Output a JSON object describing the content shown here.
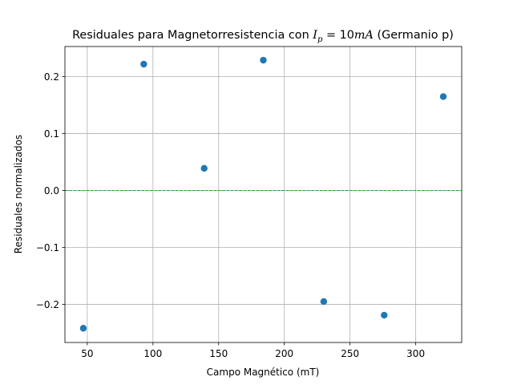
{
  "chart_data": {
    "type": "scatter",
    "title": {
      "prefix": "Residuales para Magnetorresistencia con ",
      "math_var": "I",
      "math_sub": "p",
      "math_eq": " = 10",
      "math_unit": "mA",
      "suffix": " (Germanio p)"
    },
    "xlabel": "Campo Magnético (mT)",
    "ylabel": "Residuales normalizados",
    "xlim": [
      33,
      335
    ],
    "ylim": [
      -0.267,
      0.253
    ],
    "xticks": [
      50,
      100,
      150,
      200,
      250,
      300
    ],
    "xtick_labels": [
      "50",
      "100",
      "150",
      "200",
      "250",
      "300"
    ],
    "yticks": [
      -0.2,
      -0.1,
      0.0,
      0.1,
      0.2
    ],
    "ytick_labels": [
      "−0.2",
      "−0.1",
      "0.0",
      "0.1",
      "0.2"
    ],
    "grid": true,
    "reference_line": {
      "y": 0.0,
      "color": "#2ca02c",
      "style": "dashed"
    },
    "point_color": "#1f77b4",
    "points": [
      {
        "x": 47,
        "y": -0.242
      },
      {
        "x": 93,
        "y": 0.222
      },
      {
        "x": 139,
        "y": 0.039
      },
      {
        "x": 184,
        "y": 0.229
      },
      {
        "x": 230,
        "y": -0.195
      },
      {
        "x": 276,
        "y": -0.219
      },
      {
        "x": 321,
        "y": 0.165
      }
    ]
  }
}
